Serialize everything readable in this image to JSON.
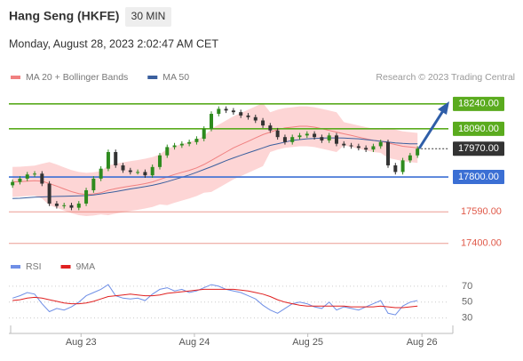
{
  "header": {
    "title": "Hang Seng (HKFE)",
    "timeframe": "30 MIN",
    "date": "Monday, August 28, 2023 2:02:47 AM CET"
  },
  "chart_data": [
    {
      "type": "candlestick",
      "attribution": "Research © 2023 Trading Central",
      "xlim": [
        -0.5,
        59.2
      ],
      "ylim": [
        17340,
        18330
      ],
      "up_color": "#2e8b1e",
      "down_color": "#333333",
      "open": [
        17750,
        17770,
        17790,
        17815,
        17820,
        17760,
        17640,
        17625,
        17630,
        17615,
        17640,
        17720,
        17790,
        17850,
        17950,
        17870,
        17840,
        17830,
        17830,
        17810,
        17860,
        17930,
        17980,
        17990,
        18000,
        18010,
        18030,
        18090,
        18180,
        18210,
        18200,
        18190,
        18170,
        18160,
        18140,
        18110,
        18080,
        18040,
        18010,
        18040,
        18050,
        18060,
        18040,
        18020,
        18050,
        18000,
        17990,
        17985,
        17975,
        17965,
        17985,
        18010,
        17870,
        17830,
        17900,
        17930
      ],
      "high": [
        17785,
        17805,
        17830,
        17835,
        17835,
        17775,
        17655,
        17645,
        17645,
        17655,
        17735,
        17805,
        17865,
        17965,
        17965,
        17885,
        17855,
        17845,
        17845,
        17875,
        17945,
        17995,
        18005,
        18015,
        18025,
        18045,
        18105,
        18195,
        18225,
        18225,
        18215,
        18205,
        18185,
        18175,
        18155,
        18125,
        18095,
        18055,
        18055,
        18065,
        18075,
        18075,
        18055,
        18065,
        18065,
        18015,
        18005,
        18000,
        17990,
        18000,
        18025,
        18025,
        17885,
        17915,
        17945,
        17985
      ],
      "low": [
        17735,
        17755,
        17775,
        17800,
        17745,
        17625,
        17610,
        17610,
        17600,
        17600,
        17625,
        17705,
        17775,
        17835,
        17855,
        17825,
        17815,
        17815,
        17795,
        17795,
        17845,
        17915,
        17965,
        17975,
        17985,
        17995,
        18015,
        18075,
        18165,
        18185,
        18175,
        18155,
        18145,
        18125,
        18095,
        18065,
        18025,
        17995,
        17995,
        18025,
        18035,
        18025,
        18005,
        18005,
        17985,
        17975,
        17970,
        17960,
        17950,
        17950,
        17970,
        17855,
        17815,
        17815,
        17885,
        17915
      ],
      "close": [
        17770,
        17790,
        17815,
        17820,
        17760,
        17640,
        17625,
        17630,
        17615,
        17640,
        17720,
        17790,
        17850,
        17950,
        17870,
        17840,
        17830,
        17830,
        17810,
        17860,
        17930,
        17980,
        17990,
        18000,
        18010,
        18030,
        18090,
        18180,
        18210,
        18200,
        18190,
        18170,
        18160,
        18140,
        18110,
        18080,
        18040,
        18010,
        18040,
        18050,
        18060,
        18040,
        18020,
        18050,
        18000,
        17990,
        17985,
        17975,
        17965,
        17985,
        18010,
        17870,
        17830,
        17900,
        17930,
        17970
      ],
      "series": [
        {
          "name": "MA 20 + Bollinger Bands",
          "color": "#f08080",
          "band_color": "#fdd5d5",
          "values": [
            17770,
            17772,
            17775,
            17778,
            17775,
            17760,
            17745,
            17728,
            17712,
            17700,
            17695,
            17698,
            17705,
            17720,
            17730,
            17738,
            17745,
            17752,
            17760,
            17770,
            17785,
            17800,
            17815,
            17828,
            17840,
            17855,
            17875,
            17900,
            17925,
            17950,
            17975,
            17995,
            18015,
            18035,
            18055,
            18070,
            18085,
            18095,
            18100,
            18105,
            18105,
            18100,
            18090,
            18080,
            18070,
            18060,
            18050,
            18040,
            18030,
            18020,
            18015,
            18005,
            17995,
            17985,
            17980,
            17975
          ],
          "upper": [
            17860,
            17862,
            17865,
            17868,
            17880,
            17890,
            17875,
            17858,
            17842,
            17830,
            17825,
            17828,
            17835,
            17870,
            17880,
            17888,
            17895,
            17902,
            17910,
            17920,
            17935,
            17970,
            17985,
            17998,
            18010,
            18025,
            18045,
            18090,
            18115,
            18140,
            18165,
            18185,
            18205,
            18225,
            18245,
            18190,
            18205,
            18215,
            18220,
            18225,
            18225,
            18220,
            18210,
            18200,
            18190,
            18130,
            18120,
            18110,
            18100,
            18090,
            18085,
            18095,
            18085,
            18075,
            18070,
            18065
          ],
          "lower": [
            17680,
            17682,
            17685,
            17688,
            17670,
            17630,
            17615,
            17598,
            17582,
            17570,
            17565,
            17568,
            17575,
            17570,
            17580,
            17588,
            17595,
            17602,
            17610,
            17620,
            17635,
            17630,
            17645,
            17658,
            17670,
            17685,
            17705,
            17710,
            17735,
            17760,
            17785,
            17805,
            17825,
            17845,
            17865,
            17950,
            17965,
            17975,
            17980,
            17985,
            17985,
            17980,
            17970,
            17960,
            17950,
            17990,
            17980,
            17970,
            17960,
            17950,
            17945,
            17915,
            17905,
            17895,
            17890,
            17885
          ]
        },
        {
          "name": "MA 50",
          "color": "#3a5f9e",
          "values": [
            17670,
            17672,
            17675,
            17678,
            17680,
            17682,
            17683,
            17684,
            17685,
            17686,
            17688,
            17692,
            17698,
            17705,
            17712,
            17720,
            17728,
            17735,
            17742,
            17750,
            17760,
            17772,
            17785,
            17798,
            17812,
            17828,
            17845,
            17862,
            17880,
            17898,
            17915,
            17930,
            17945,
            17960,
            17975,
            17990,
            18000,
            18010,
            18020,
            18025,
            18030,
            18032,
            18034,
            18035,
            18035,
            18034,
            18032,
            18030,
            18025,
            18020,
            18015,
            18010,
            18005,
            18002,
            18000,
            18000
          ]
        }
      ],
      "levels": [
        {
          "value": 18240,
          "label": "18240.00",
          "color": "#5aab1e",
          "boxed": true,
          "dotted": false
        },
        {
          "value": 18090,
          "label": "18090.00",
          "color": "#5aab1e",
          "boxed": true,
          "dotted": false
        },
        {
          "value": 17970,
          "label": "17970.00",
          "color": "#333333",
          "boxed": true,
          "dotted": true
        },
        {
          "value": 17800,
          "label": "17800.00",
          "color": "#3b6fd4",
          "boxed": true,
          "dotted": false
        },
        {
          "value": 17590,
          "label": "17590.00",
          "color": "#e05a4a",
          "boxed": false,
          "dotted": false
        },
        {
          "value": 17400,
          "label": "17400.00",
          "color": "#e05a4a",
          "boxed": false,
          "dotted": false
        }
      ]
    },
    {
      "type": "line",
      "xlim": [
        -0.5,
        59.2
      ],
      "ylim": [
        14,
        81
      ],
      "yticks": [
        70,
        50,
        30
      ],
      "grid": true,
      "xticks": [
        {
          "value": 9.3,
          "label": "Aug 23"
        },
        {
          "value": 24.7,
          "label": "Aug 24"
        },
        {
          "value": 40.1,
          "label": "Aug 25"
        },
        {
          "value": 55.6,
          "label": "Aug 26"
        }
      ],
      "series": [
        {
          "name": "RSI",
          "color": "#6f8fe6",
          "values": [
            55,
            58,
            62,
            60,
            48,
            38,
            42,
            40,
            44,
            50,
            58,
            62,
            66,
            72,
            58,
            55,
            54,
            55,
            52,
            60,
            66,
            68,
            64,
            66,
            62,
            64,
            68,
            72,
            70,
            66,
            64,
            62,
            58,
            54,
            46,
            40,
            36,
            42,
            48,
            50,
            48,
            44,
            42,
            50,
            40,
            44,
            42,
            40,
            44,
            48,
            52,
            36,
            34,
            45,
            50,
            52
          ]
        },
        {
          "name": "9MA",
          "color": "#e02020",
          "values": [
            52,
            53,
            55,
            56,
            55,
            53,
            51,
            49,
            48,
            48,
            49,
            51,
            54,
            57,
            58,
            59,
            60,
            59,
            58,
            58,
            59,
            61,
            62,
            63,
            64,
            65,
            66,
            66,
            66,
            66,
            66,
            65,
            64,
            62,
            60,
            57,
            53,
            50,
            48,
            46,
            45,
            45,
            45,
            45,
            45,
            45,
            44,
            44,
            44,
            44,
            45,
            44,
            43,
            43,
            44,
            45
          ]
        }
      ]
    }
  ]
}
